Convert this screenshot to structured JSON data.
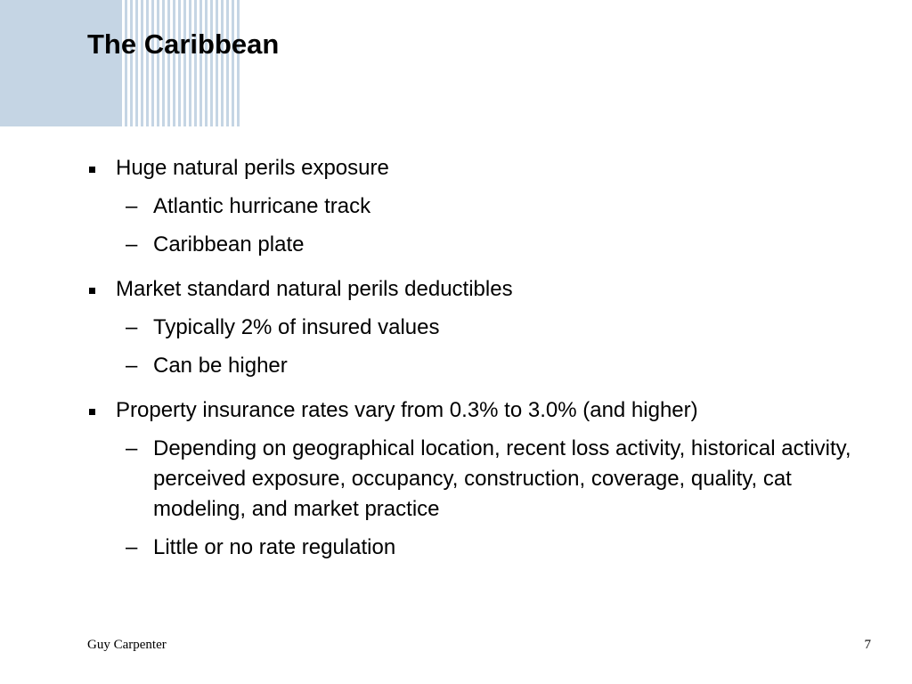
{
  "slide": {
    "title": "The Caribbean",
    "bullets": [
      {
        "text": "Huge natural perils exposure",
        "subs": [
          "Atlantic hurricane track",
          "Caribbean plate"
        ]
      },
      {
        "text": "Market standard natural perils deductibles",
        "subs": [
          "Typically 2% of insured values",
          "Can be higher"
        ]
      },
      {
        "text": "Property insurance rates vary from 0.3% to 3.0% (and higher)",
        "subs": [
          "Depending on geographical location, recent loss activity, historical activity, perceived exposure, occupancy, construction, coverage, quality, cat modeling, and market practice",
          "Little or no rate regulation"
        ]
      }
    ]
  },
  "footer": {
    "company": "Guy Carpenter",
    "page_number": "7"
  },
  "colors": {
    "decoration": "#c5d5e4",
    "text": "#000000",
    "background": "#ffffff"
  }
}
